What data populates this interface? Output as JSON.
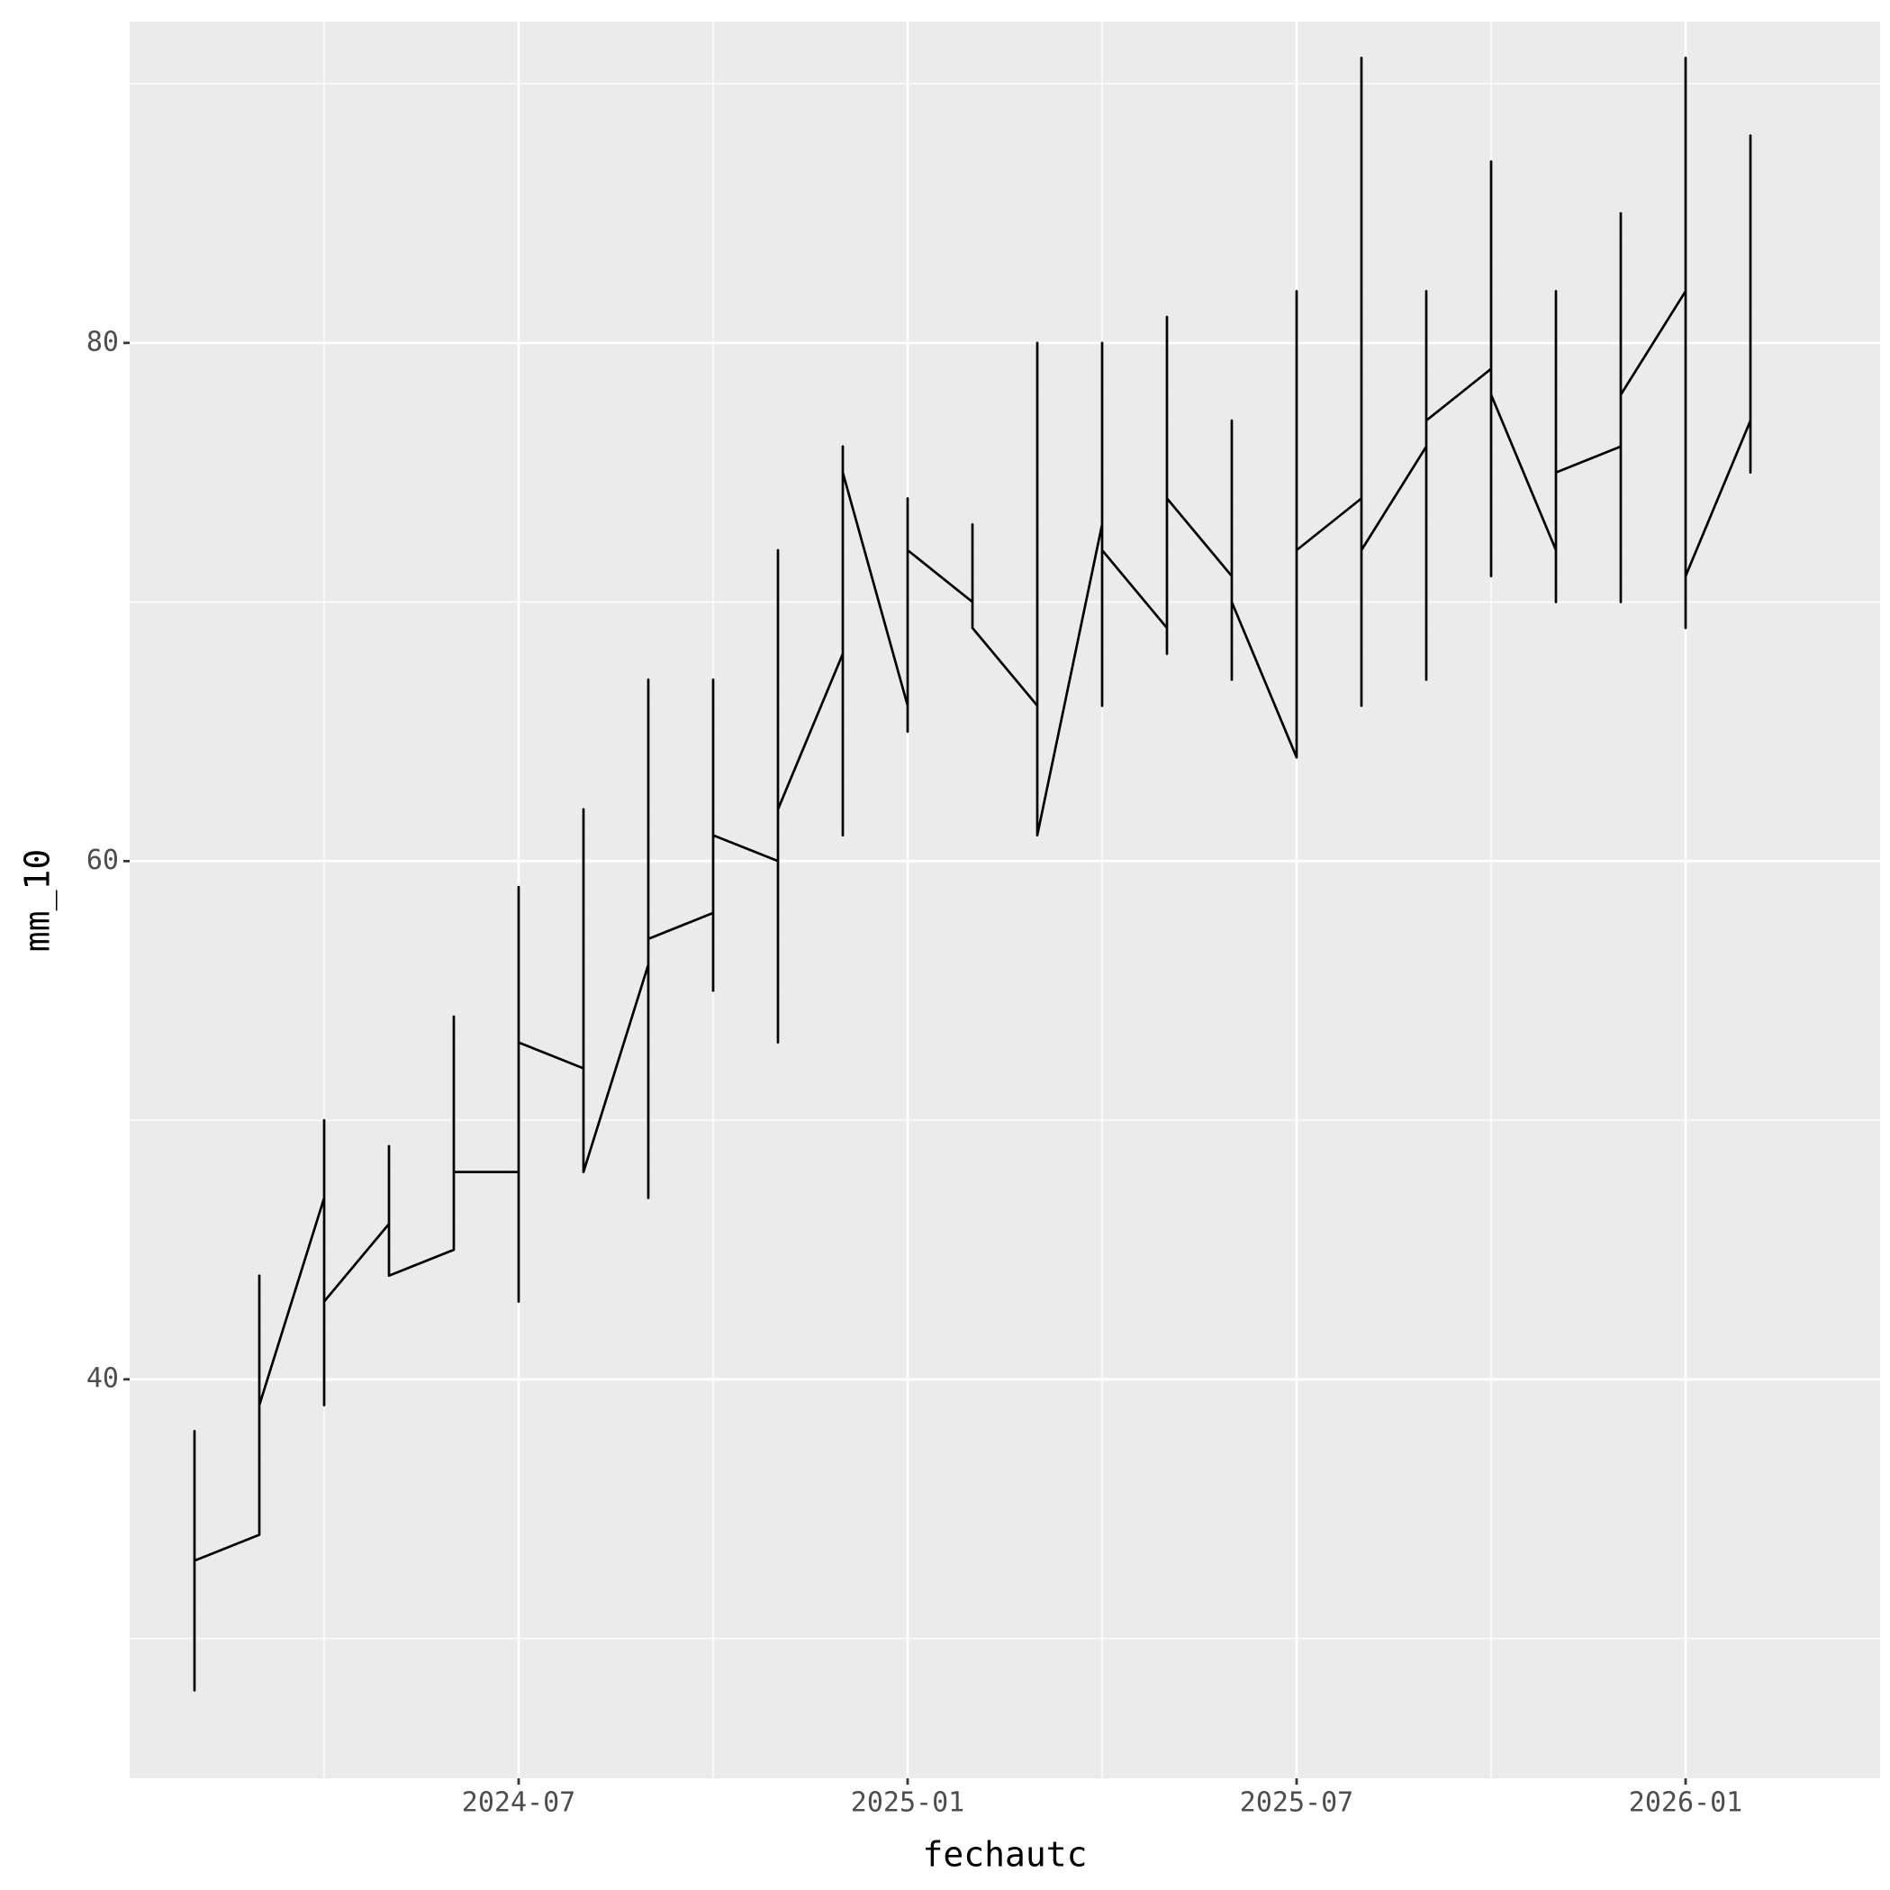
{
  "chart_data": {
    "type": "line",
    "x_label": "fechautc",
    "y_label": "mm_10",
    "color": "#000000",
    "grid": true,
    "xlim": [
      "2024-01",
      "2026-04"
    ],
    "xticks": [
      "2024-07",
      "2025-01",
      "2025-07",
      "2026-01"
    ],
    "xminorticks": [
      "2024-04",
      "2024-10",
      "2025-04",
      "2025-10"
    ],
    "ylim": [
      24.6,
      92.4
    ],
    "yticks": [
      40,
      60,
      80
    ],
    "yminorticks": [
      30,
      50,
      70,
      90
    ],
    "x": [
      "2024-02",
      "2024-02",
      "2024-02",
      "2024-02",
      "2024-02",
      "2024-03",
      "2024-03",
      "2024-03",
      "2024-03",
      "2024-03",
      "2024-04",
      "2024-04",
      "2024-04",
      "2024-04",
      "2024-04",
      "2024-04",
      "2024-05",
      "2024-05",
      "2024-05",
      "2024-05",
      "2024-06",
      "2024-06",
      "2024-06",
      "2024-06",
      "2024-06",
      "2024-06",
      "2024-07",
      "2024-07",
      "2024-07",
      "2024-07",
      "2024-07",
      "2024-07",
      "2024-07",
      "2024-07",
      "2024-08",
      "2024-08",
      "2024-08",
      "2024-08",
      "2024-08",
      "2024-08",
      "2024-08",
      "2024-08",
      "2024-09",
      "2024-09",
      "2024-09",
      "2024-09",
      "2024-09",
      "2024-09",
      "2024-09",
      "2024-09",
      "2024-09",
      "2024-10",
      "2024-10",
      "2024-10",
      "2024-10",
      "2024-10",
      "2024-10",
      "2024-10",
      "2024-10",
      "2024-11",
      "2024-11",
      "2024-11",
      "2024-11",
      "2024-11",
      "2024-11",
      "2024-11",
      "2024-11",
      "2024-12",
      "2024-12",
      "2024-12",
      "2024-12",
      "2024-12",
      "2024-12",
      "2024-12",
      "2024-12",
      "2025-01",
      "2025-01",
      "2025-01",
      "2025-01",
      "2025-01",
      "2025-01",
      "2025-02",
      "2025-02",
      "2025-02",
      "2025-02",
      "2025-02",
      "2025-03",
      "2025-03",
      "2025-03",
      "2025-03",
      "2025-03",
      "2025-03",
      "2025-03",
      "2025-04",
      "2025-04",
      "2025-04",
      "2025-04",
      "2025-04",
      "2025-04",
      "2025-04",
      "2025-05",
      "2025-05",
      "2025-05",
      "2025-05",
      "2025-05",
      "2025-05",
      "2025-05",
      "2025-06",
      "2025-06",
      "2025-06",
      "2025-06",
      "2025-06",
      "2025-07",
      "2025-07",
      "2025-07",
      "2025-07",
      "2025-07",
      "2025-07",
      "2025-07",
      "2025-07",
      "2025-08",
      "2025-08",
      "2025-08",
      "2025-08",
      "2025-08",
      "2025-08",
      "2025-08",
      "2025-09",
      "2025-09",
      "2025-09",
      "2025-09",
      "2025-09",
      "2025-09",
      "2025-09",
      "2025-10",
      "2025-10",
      "2025-10",
      "2025-10",
      "2025-10",
      "2025-10",
      "2025-10",
      "2025-11",
      "2025-11",
      "2025-11",
      "2025-11",
      "2025-11",
      "2025-11",
      "2025-12",
      "2025-12",
      "2025-12",
      "2025-12",
      "2025-12",
      "2025-12",
      "2025-12",
      "2026-01",
      "2026-01",
      "2026-01",
      "2026-01",
      "2026-01",
      "2026-01",
      "2026-01",
      "2026-01",
      "2026-02",
      "2026-02",
      "2026-02",
      "2026-02",
      "2026-02"
    ],
    "values": [
      35,
      28,
      38,
      31,
      33,
      34,
      44,
      37,
      42,
      39,
      47,
      40,
      50,
      39,
      45,
      43,
      46,
      48,
      49,
      44,
      45,
      53,
      46,
      54,
      50,
      48,
      48,
      56,
      52,
      59,
      50,
      55,
      43,
      53,
      52,
      57,
      49,
      62,
      50,
      58,
      54,
      48,
      56,
      61,
      48,
      67,
      53,
      66,
      47,
      62,
      57,
      58,
      67,
      55,
      66,
      60,
      62,
      57,
      61,
      60,
      53,
      66,
      58,
      70,
      65,
      72,
      62,
      68,
      74,
      63,
      76,
      66,
      70,
      61,
      75,
      66,
      70,
      65,
      74,
      68,
      72,
      70,
      72,
      71,
      73,
      69,
      66,
      80,
      64,
      78,
      68,
      75,
      61,
      73,
      80,
      66,
      78,
      70,
      75,
      72,
      69,
      81,
      72,
      80,
      68,
      78,
      74,
      71,
      77,
      67,
      73,
      70,
      64,
      75,
      70,
      82,
      68,
      78,
      65,
      72,
      74,
      91,
      68,
      81,
      66,
      79,
      72,
      76,
      67,
      82,
      69,
      80,
      73,
      77,
      79,
      71,
      87,
      74,
      83,
      75,
      78,
      72,
      73,
      82,
      70,
      78,
      75,
      76,
      85,
      70,
      82,
      74,
      84,
      78,
      82,
      69,
      91,
      72,
      84,
      74,
      80,
      71,
      77,
      81,
      75,
      88,
      76
    ]
  }
}
